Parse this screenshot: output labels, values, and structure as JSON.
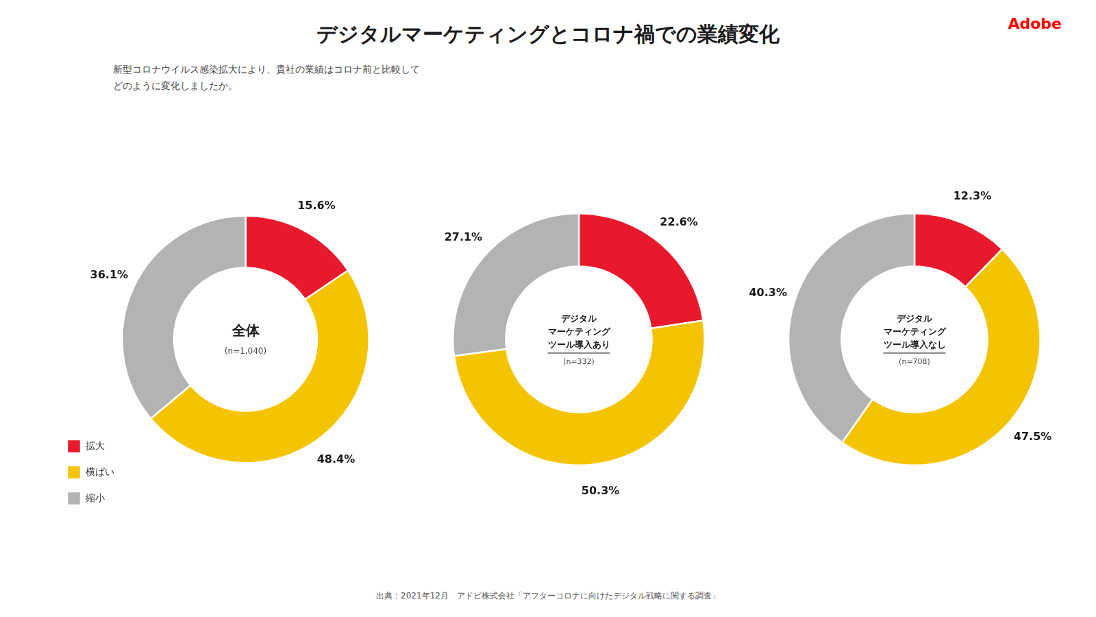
{
  "title": "デジタルマーケティングとコロナ禍での業績変化",
  "subtitle": [
    "新型コロナウイルス感染拡大により、貴社の業績はコロナ前と比較して",
    "どのように変化しましたか。"
  ],
  "annotations": [
    "出典：2021年12月　アドビ株式会社「アフターコロナに向けたデジタル戦略に関する調査」",
    "Adobe"
  ],
  "chart_data": [
    {
      "type": "doughnut",
      "title": "全体",
      "subtitle": "(n=1,040)",
      "categories": [
        "拡大",
        "横ばい",
        "縮小"
      ],
      "values": [
        15.6,
        48.4,
        36.1
      ],
      "value_labels": [
        "15.6%",
        "48.4%",
        "36.1%"
      ],
      "colors": [
        "#e8192c",
        "#f5c400",
        "#b3b3b3"
      ],
      "data_labels": true,
      "legend": "lower left"
    },
    {
      "type": "doughnut",
      "title": "デジタル\nマーケティング\nツール導入あり",
      "subtitle": "(n=332)",
      "categories": [
        "拡大",
        "横ばい",
        "縮小"
      ],
      "values": [
        22.6,
        50.3,
        27.1
      ],
      "value_labels": [
        "22.6%",
        "50.3%",
        "27.1%"
      ],
      "colors": [
        "#e8192c",
        "#f5c400",
        "#b3b3b3"
      ],
      "data_labels": true
    },
    {
      "type": "doughnut",
      "title": "デジタル\nマーケティング\nツール導入なし",
      "subtitle": "(n=708)",
      "categories": [
        "拡大",
        "横ばい",
        "縮小"
      ],
      "values": [
        12.3,
        47.5,
        40.3
      ],
      "value_labels": [
        "12.3%",
        "47.5%",
        "40.3%"
      ],
      "colors": [
        "#e8192c",
        "#f5c400",
        "#b3b3b3"
      ],
      "data_labels": true
    }
  ]
}
